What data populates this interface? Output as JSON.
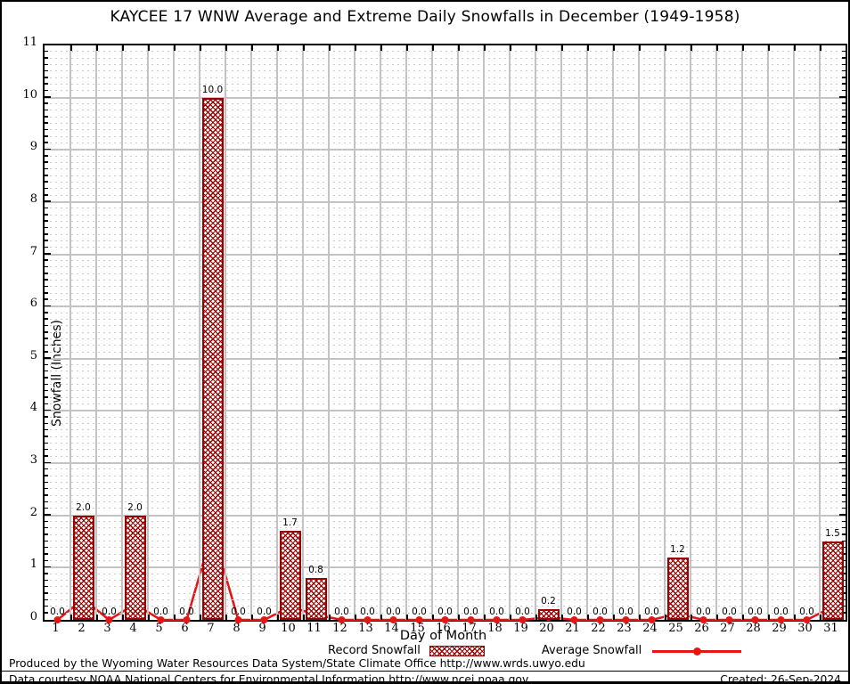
{
  "chart_data": {
    "type": "bar",
    "title": "KAYCEE 17 WNW Average and Extreme Daily Snowfalls in December (1949-1958)",
    "xlabel": "Day of Month",
    "ylabel": "Snowfall (Inches)",
    "ylim": [
      0,
      11
    ],
    "y_major_step": 1,
    "y_minor_divisions": 8,
    "grid": "on",
    "legend_position": "bottom-center",
    "categories": [
      1,
      2,
      3,
      4,
      5,
      6,
      7,
      8,
      9,
      10,
      11,
      12,
      13,
      14,
      15,
      16,
      17,
      18,
      19,
      20,
      21,
      22,
      23,
      24,
      25,
      26,
      27,
      28,
      29,
      30,
      31
    ],
    "series": [
      {
        "name": "Record Snowfall",
        "type": "bar",
        "color": "#990000",
        "values": [
          0.0,
          2.0,
          0.0,
          2.0,
          0.0,
          0.0,
          10.0,
          0.0,
          0.0,
          1.7,
          0.8,
          0.0,
          0.0,
          0.0,
          0.0,
          0.0,
          0.0,
          0.0,
          0.0,
          0.2,
          0.0,
          0.0,
          0.0,
          0.0,
          1.2,
          0.0,
          0.0,
          0.0,
          0.0,
          0.0,
          1.5
        ]
      },
      {
        "name": "Average Snowfall",
        "type": "line",
        "color": "#e51616",
        "values": [
          0,
          0.4,
          0,
          0.3,
          0,
          0,
          1.7,
          0,
          0,
          0.25,
          0.1,
          0,
          0,
          0,
          0,
          0,
          0,
          0,
          0,
          0.05,
          0,
          0,
          0,
          0,
          0.12,
          0,
          0,
          0,
          0,
          0,
          0.25
        ]
      }
    ],
    "colors": {
      "bar_fill_hatch": "#990000",
      "bar_border": "#990000",
      "line": "#e51616",
      "grid_major": "#c3c3c3",
      "grid_minor": "#c9c9c9",
      "axis": "#000000"
    }
  },
  "footer": {
    "line1": "Produced by the Wyoming Water Resources Data System/State Climate Office http://www.wrds.uwyo.edu",
    "line2": "Data courtesy NOAA National Centers for Environmental Information http://www.ncei.noaa.gov",
    "created": "Created: 26-Sep-2024"
  }
}
